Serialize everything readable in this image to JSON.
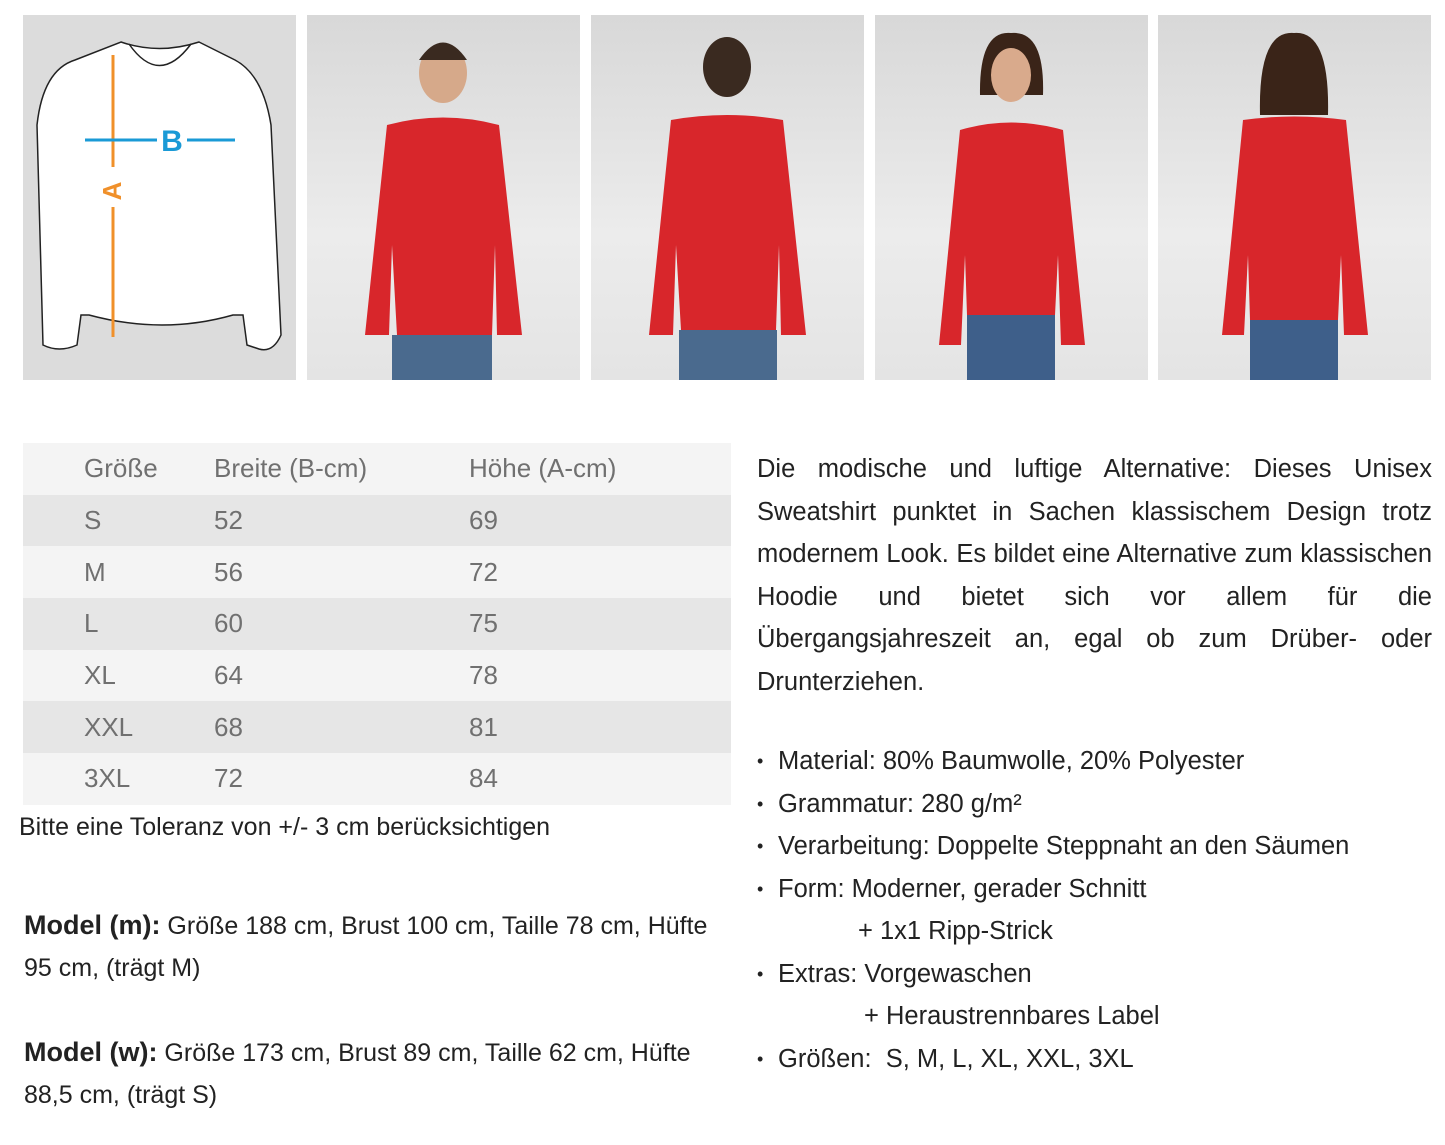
{
  "images": [
    {
      "name": "size-diagram",
      "label_a": "A",
      "label_b": "B",
      "color_a": "#f0902a",
      "color_b": "#1a9ad6"
    },
    {
      "name": "male-model-front"
    },
    {
      "name": "male-model-back"
    },
    {
      "name": "female-model-front"
    },
    {
      "name": "female-model-back"
    }
  ],
  "colors": {
    "sweatshirt": "#d8262b",
    "jeans": "#4a6a8e"
  },
  "size_table": {
    "headers": [
      "Größe",
      "Breite (B-cm)",
      "Höhe (A-cm)"
    ],
    "rows": [
      [
        "S",
        "52",
        "69"
      ],
      [
        "M",
        "56",
        "72"
      ],
      [
        "L",
        "60",
        "75"
      ],
      [
        "XL",
        "64",
        "78"
      ],
      [
        "XXL",
        "68",
        "81"
      ],
      [
        "3XL",
        "72",
        "84"
      ]
    ]
  },
  "tolerance": "Bitte eine Toleranz von +/- 3 cm berücksichtigen",
  "model_m": {
    "label": "Model (m):",
    "text": " Größe 188 cm, Brust 100 cm, Taille 78 cm, Hüfte 95 cm, (trägt M)"
  },
  "model_w": {
    "label": "Model (w):",
    "text": " Größe 173 cm, Brust 89 cm, Taille 62 cm, Hüfte 88,5 cm, (trägt S)"
  },
  "description": "Die modische und luftige Alternative: Dieses Unisex Sweatshirt punktet in Sachen klassischem Design trotz modernem Look. Es bildet eine Alternative zum klassischen Hoodie und bietet sich vor allem für die Übergangsjahreszeit an, egal ob zum Drüber- oder Drunterziehen.",
  "features": [
    {
      "text": "Material: 80% Baumwolle, 20% Polyester"
    },
    {
      "text": "Grammatur: 280 g/m²"
    },
    {
      "text": "Verarbeitung: Doppelte Steppnaht an den Säumen"
    },
    {
      "text": "Form: Moderner, gerader Schnitt",
      "cont": "+ 1x1 Ripp-Strick"
    },
    {
      "text": "Extras: Vorgewaschen",
      "cont": "+ Heraustrennbares Label"
    },
    {
      "text": "Größen:  S, M, L, XL, XXL, 3XL"
    }
  ]
}
